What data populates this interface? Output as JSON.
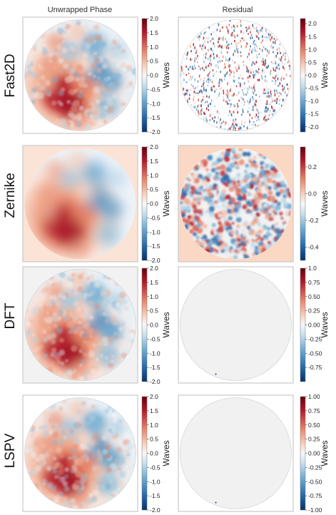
{
  "column_titles": [
    "Unwrapped Phase",
    "Residual"
  ],
  "row_labels": [
    "Fast2D",
    "Zernike",
    "DFT",
    "LSPV"
  ],
  "colormap": {
    "low": "#08306b",
    "mid": "#f7f7f7",
    "high": "#67000d"
  },
  "chart_data": [
    {
      "type": "heatmap",
      "row": "Fast2D",
      "column": "Unwrapped Phase",
      "colorbar_label": "Waves",
      "clim": [
        -2.0,
        2.0
      ],
      "ticks": [
        "2.0",
        "1.5",
        "1.0",
        "0.5",
        "0.0",
        "-0.5",
        "-1.0",
        "-1.5",
        "-2.0"
      ],
      "pattern": "smooth-phase",
      "background": "#ffffff",
      "circle_border": true
    },
    {
      "type": "heatmap",
      "row": "Fast2D",
      "column": "Residual",
      "colorbar_label": "Waves",
      "clim": [
        -2.2,
        2.2
      ],
      "ticks": [
        "2.0",
        "1.5",
        "1.0",
        "0.5",
        "0.0",
        "-0.5",
        "-1.0",
        "-1.5",
        "-2.0"
      ],
      "pattern": "sparse-noise",
      "background": "#ffffff",
      "circle_border": true
    },
    {
      "type": "heatmap",
      "row": "Zernike",
      "column": "Unwrapped Phase",
      "colorbar_label": "Waves",
      "clim": [
        -2.0,
        2.0
      ],
      "ticks": [
        "2.0",
        "1.5",
        "1.0",
        "0.5",
        "0.0",
        "-0.5",
        "-1.0",
        "-1.5",
        "-2.0"
      ],
      "pattern": "smooth-fit",
      "background": "#fbe3d5",
      "circle_border": false
    },
    {
      "type": "heatmap",
      "row": "Zernike",
      "column": "Residual",
      "colorbar_label": "Waves",
      "clim": [
        -0.5,
        0.35
      ],
      "ticks": [
        "0.2",
        "0.0",
        "-0.2",
        "-0.4"
      ],
      "pattern": "dense-noise",
      "background": "#fbd8c4",
      "circle_border": false
    },
    {
      "type": "heatmap",
      "row": "DFT",
      "column": "Unwrapped Phase",
      "colorbar_label": "Waves",
      "clim": [
        -2.0,
        2.0
      ],
      "ticks": [
        "2.0",
        "1.5",
        "1.0",
        "0.5",
        "0.0",
        "-0.5",
        "-1.0",
        "-1.5",
        "-2.0"
      ],
      "pattern": "smooth-phase",
      "background": "#f2f2f2",
      "circle_border": true
    },
    {
      "type": "heatmap",
      "row": "DFT",
      "column": "Residual",
      "colorbar_label": "Waves",
      "clim": [
        -1.0,
        1.0
      ],
      "ticks": [
        "1.0",
        "0.75",
        "0.50",
        "0.25",
        "0.00",
        "-0.25",
        "-0.50",
        "-0.75"
      ],
      "pattern": "flat",
      "background": "#ffffff",
      "circle_border": true
    },
    {
      "type": "heatmap",
      "row": "LSPV",
      "column": "Unwrapped Phase",
      "colorbar_label": "Waves",
      "clim": [
        -2.0,
        2.0
      ],
      "ticks": [
        "2.0",
        "1.5",
        "1.0",
        "0.5",
        "0.0",
        "-0.5",
        "-1.0",
        "-1.5",
        "-2.0"
      ],
      "pattern": "smooth-phase",
      "background": "#ffffff",
      "circle_border": true
    },
    {
      "type": "heatmap",
      "row": "LSPV",
      "column": "Residual",
      "colorbar_label": "Waves",
      "clim": [
        -1.0,
        1.0
      ],
      "ticks": [
        "1.00",
        "0.75",
        "0.50",
        "0.25",
        "0.00",
        "-0.25",
        "-0.50",
        "-0.75",
        "-1.00"
      ],
      "pattern": "flat",
      "background": "#ffffff",
      "circle_border": true
    }
  ]
}
